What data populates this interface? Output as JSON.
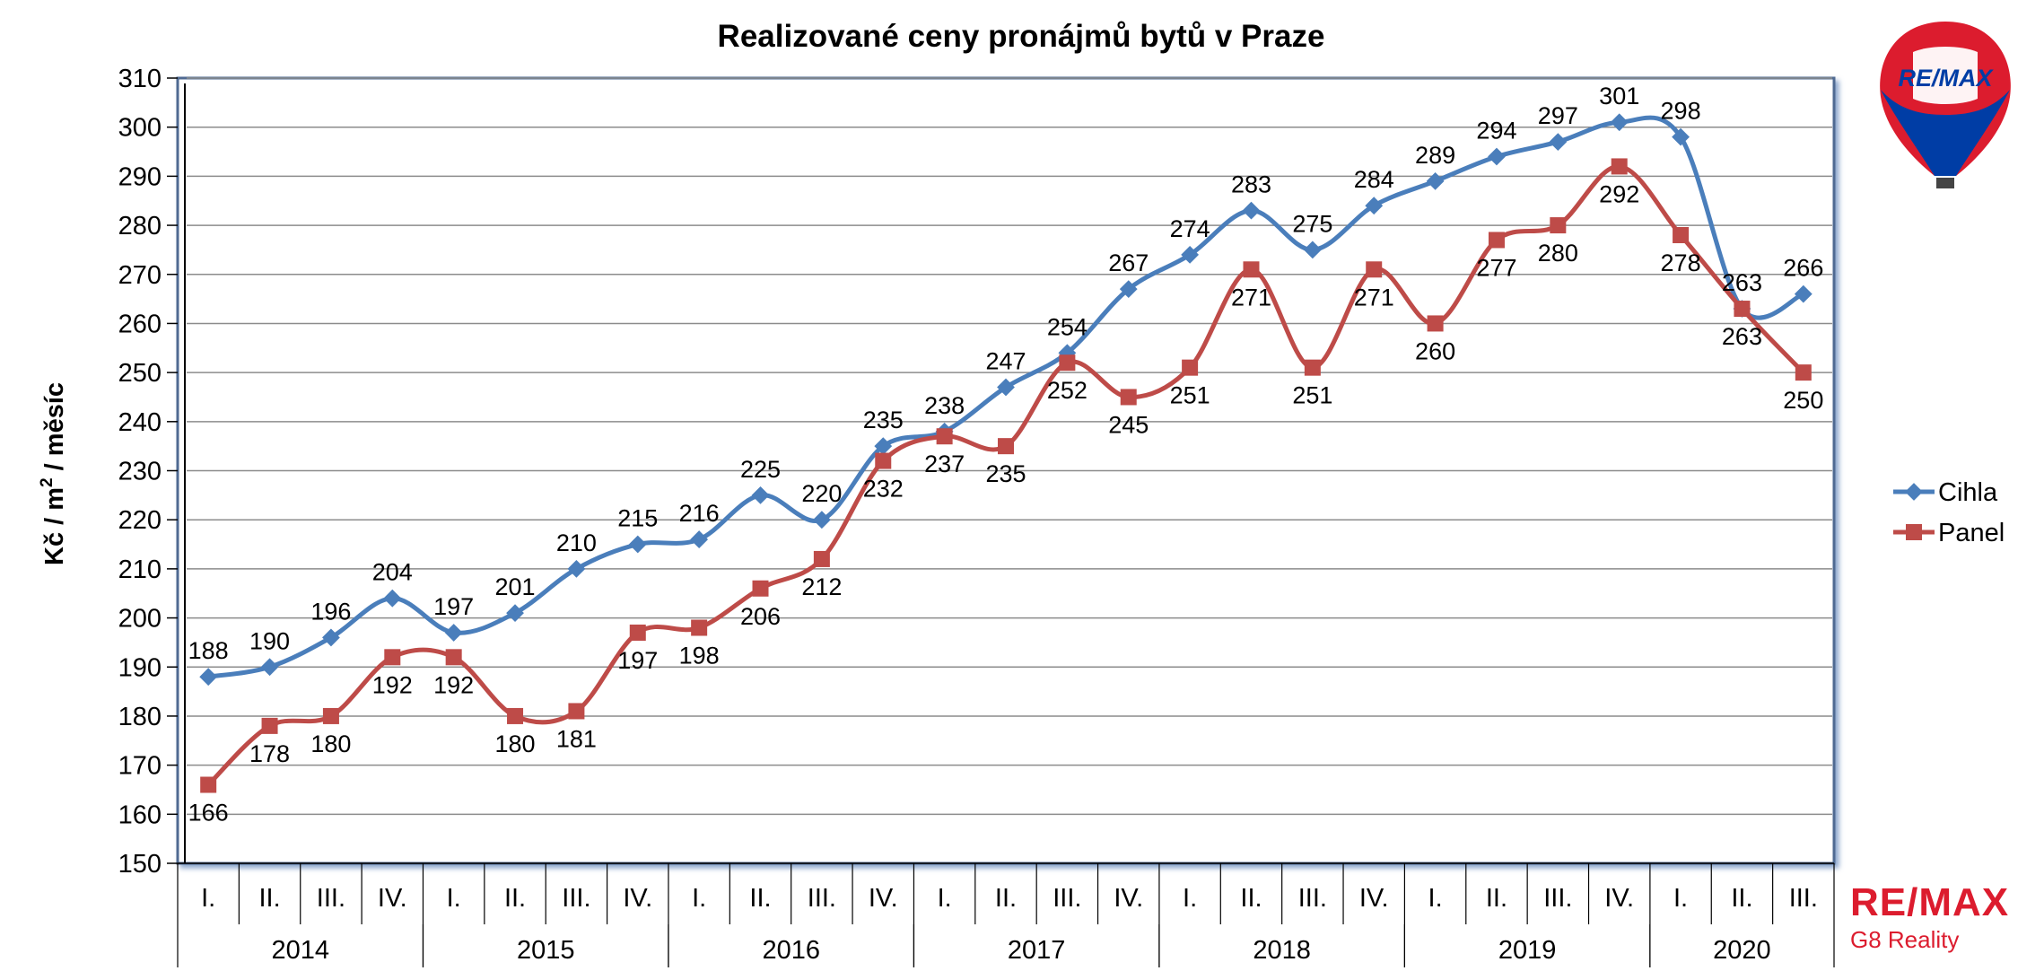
{
  "chart_data": {
    "type": "line",
    "title": "Realizované ceny pronájmů bytů v Praze",
    "ylabel_main": "Kč / m",
    "ylabel_sup": "2",
    "ylabel_rest": " / měsíc",
    "ylim": [
      150,
      310
    ],
    "yticks": [
      150,
      160,
      170,
      180,
      190,
      200,
      210,
      220,
      230,
      240,
      250,
      260,
      270,
      280,
      290,
      300,
      310
    ],
    "quarters": [
      "I.",
      "II.",
      "III.",
      "IV.",
      "I.",
      "II.",
      "III.",
      "IV.",
      "I.",
      "II.",
      "III.",
      "IV.",
      "I.",
      "II.",
      "III.",
      "IV.",
      "I.",
      "II.",
      "III.",
      "IV.",
      "I.",
      "II.",
      "III.",
      "IV.",
      "I.",
      "II.",
      "III."
    ],
    "years": [
      {
        "label": "2014",
        "start": 0,
        "count": 4
      },
      {
        "label": "2015",
        "start": 4,
        "count": 4
      },
      {
        "label": "2016",
        "start": 8,
        "count": 4
      },
      {
        "label": "2017",
        "start": 12,
        "count": 4
      },
      {
        "label": "2018",
        "start": 16,
        "count": 4
      },
      {
        "label": "2019",
        "start": 20,
        "count": 4
      },
      {
        "label": "2020",
        "start": 24,
        "count": 3
      }
    ],
    "series": [
      {
        "name": "Cihla",
        "color": "#4a7ebb",
        "marker": "diamond",
        "values": [
          188,
          190,
          196,
          204,
          197,
          201,
          210,
          215,
          216,
          225,
          220,
          235,
          238,
          247,
          254,
          267,
          274,
          283,
          275,
          284,
          289,
          294,
          297,
          301,
          298,
          263,
          266
        ]
      },
      {
        "name": "Panel",
        "color": "#be4b48",
        "marker": "square",
        "values": [
          166,
          178,
          180,
          192,
          192,
          180,
          181,
          197,
          198,
          206,
          212,
          232,
          237,
          235,
          252,
          245,
          251,
          271,
          251,
          271,
          260,
          277,
          280,
          292,
          278,
          263,
          250
        ]
      }
    ],
    "legend_position": "right",
    "grid": true
  },
  "logos": {
    "balloon_text": "RE/MAX",
    "brand_text": "RE/MAX",
    "brand_sub": "G8 Reality",
    "red": "#dc1c2e",
    "blue": "#003da5"
  }
}
